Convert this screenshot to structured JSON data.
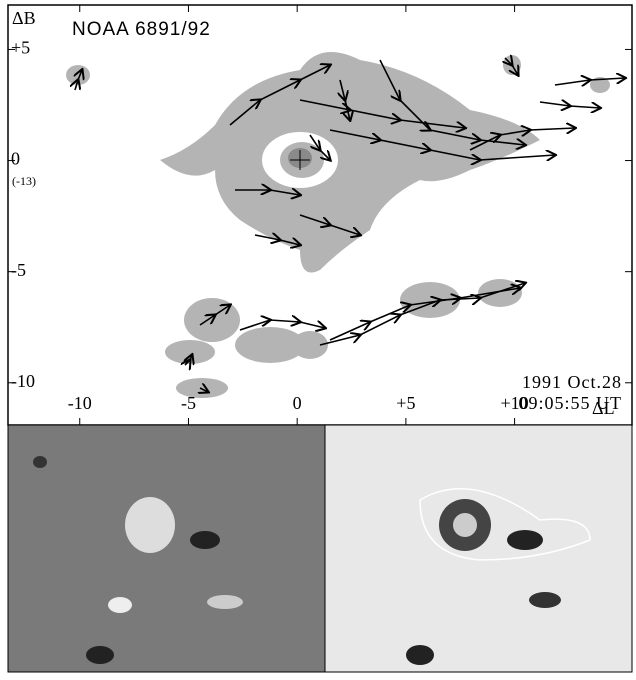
{
  "chart_data": {
    "type": "vector-map",
    "title": "NOAA 6891/92",
    "date": "1991 Oct.28",
    "time": "09:05:55 UT",
    "xlabel": "ΔL",
    "ylabel": "ΔB",
    "y_note": "(-13)",
    "xlim": [
      -13.3,
      15.4
    ],
    "ylim": [
      -11.9,
      7
    ],
    "xticks": [
      -10,
      -5,
      0,
      {
        "value": 5,
        "label": "+5"
      },
      {
        "value": 10,
        "label": "+10"
      }
    ],
    "yticks": [
      {
        "value": 5,
        "label": "+5"
      },
      0,
      -5,
      -10
    ]
  }
}
